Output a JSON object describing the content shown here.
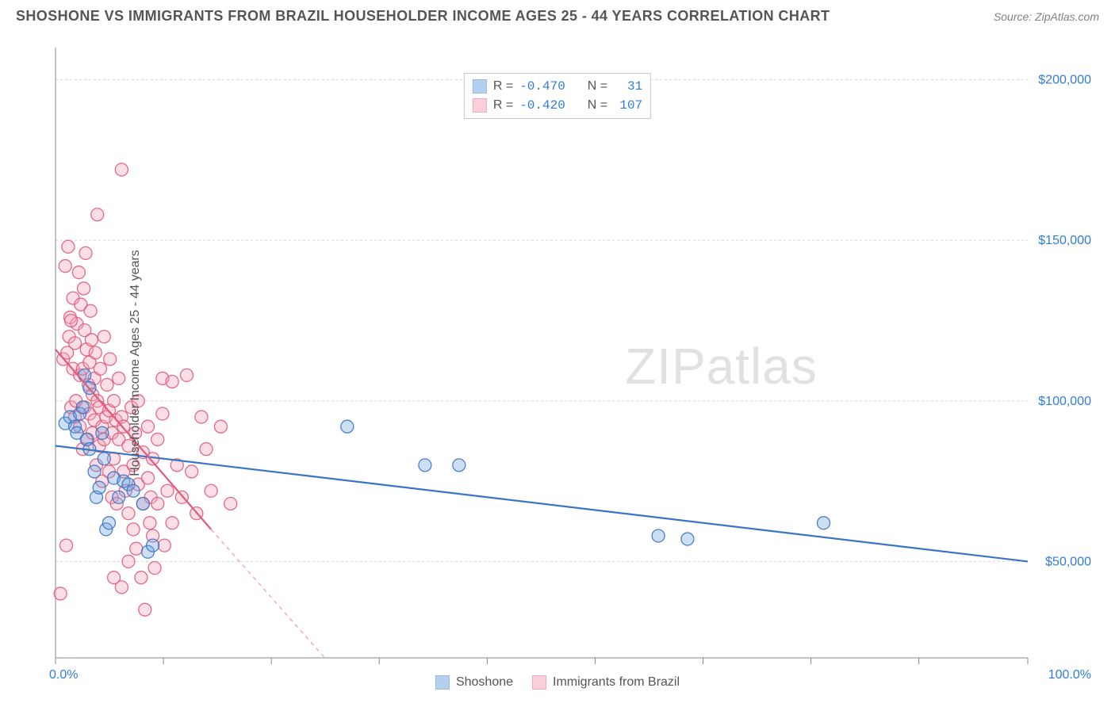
{
  "title": "SHOSHONE VS IMMIGRANTS FROM BRAZIL HOUSEHOLDER INCOME AGES 25 - 44 YEARS CORRELATION CHART",
  "source_prefix": "Source: ",
  "source_name": "ZipAtlas.com",
  "ylabel": "Householder Income Ages 25 - 44 years",
  "watermark_bold": "ZIP",
  "watermark_thin": "atlas",
  "chart": {
    "type": "scatter",
    "xlim": [
      0,
      100
    ],
    "ylim": [
      20000,
      210000
    ],
    "x_axis_origin_label": "0.0%",
    "x_axis_end_label": "100.0%",
    "y_ticks": [
      50000,
      100000,
      150000,
      200000
    ],
    "y_tick_labels": [
      "$50,000",
      "$100,000",
      "$150,000",
      "$200,000"
    ],
    "x_ticks": [
      0,
      11.1,
      22.2,
      33.3,
      44.4,
      55.5,
      66.6,
      77.7,
      88.8,
      100
    ],
    "grid_color": "#d7d7d7",
    "axis_color": "#888888",
    "background_color": "#ffffff",
    "marker_radius": 8,
    "marker_fill_opacity": 0.35,
    "marker_stroke_opacity": 0.9,
    "line_width": 2.2
  },
  "series": [
    {
      "name": "Shoshone",
      "color": "#6ea3e0",
      "stroke": "#3a74c4",
      "r_label": "R = ",
      "r_value": "-0.470",
      "n_label": "N = ",
      "n_value": "31",
      "regression": {
        "x1": 0,
        "y1": 86000,
        "x2": 100,
        "y2": 50000
      },
      "points": [
        [
          1.0,
          93000
        ],
        [
          1.5,
          95000
        ],
        [
          2.0,
          92000
        ],
        [
          2.2,
          90000
        ],
        [
          2.5,
          96000
        ],
        [
          3.0,
          108000
        ],
        [
          3.2,
          88000
        ],
        [
          3.5,
          85000
        ],
        [
          3.5,
          104000
        ],
        [
          4.0,
          78000
        ],
        [
          4.2,
          70000
        ],
        [
          4.5,
          73000
        ],
        [
          5.0,
          82000
        ],
        [
          5.2,
          60000
        ],
        [
          5.5,
          62000
        ],
        [
          6.0,
          76000
        ],
        [
          6.5,
          70000
        ],
        [
          7.0,
          75000
        ],
        [
          7.5,
          74000
        ],
        [
          8.0,
          72000
        ],
        [
          9.0,
          68000
        ],
        [
          9.5,
          53000
        ],
        [
          10.0,
          55000
        ],
        [
          30.0,
          92000
        ],
        [
          38.0,
          80000
        ],
        [
          41.5,
          80000
        ],
        [
          62.0,
          58000
        ],
        [
          65.0,
          57000
        ],
        [
          79.0,
          62000
        ],
        [
          2.8,
          98000
        ],
        [
          4.8,
          90000
        ]
      ]
    },
    {
      "name": "Immigrants from Brazil",
      "color": "#f5a3b7",
      "stroke": "#e05a7a",
      "r_label": "R = ",
      "r_value": "-0.420",
      "n_label": "N = ",
      "n_value": "107",
      "regression": {
        "x1": 0,
        "y1": 116000,
        "x2": 16,
        "y2": 60000
      },
      "regression_dash": {
        "x1": 16,
        "y1": 60000,
        "x2": 35,
        "y2": -5000
      },
      "points": [
        [
          0.8,
          113000
        ],
        [
          1.0,
          142000
        ],
        [
          1.2,
          115000
        ],
        [
          1.3,
          148000
        ],
        [
          1.4,
          120000
        ],
        [
          1.5,
          126000
        ],
        [
          1.6,
          98000
        ],
        [
          1.8,
          110000
        ],
        [
          1.8,
          132000
        ],
        [
          2.0,
          118000
        ],
        [
          2.0,
          95000
        ],
        [
          2.1,
          100000
        ],
        [
          2.2,
          124000
        ],
        [
          2.4,
          140000
        ],
        [
          2.5,
          108000
        ],
        [
          2.5,
          92000
        ],
        [
          2.6,
          130000
        ],
        [
          2.8,
          110000
        ],
        [
          2.8,
          85000
        ],
        [
          3.0,
          122000
        ],
        [
          3.0,
          98000
        ],
        [
          3.1,
          146000
        ],
        [
          3.2,
          116000
        ],
        [
          3.3,
          88000
        ],
        [
          3.4,
          105000
        ],
        [
          3.5,
          112000
        ],
        [
          3.5,
          96000
        ],
        [
          3.6,
          128000
        ],
        [
          3.8,
          102000
        ],
        [
          3.8,
          90000
        ],
        [
          4.0,
          94000
        ],
        [
          4.0,
          107000
        ],
        [
          4.1,
          115000
        ],
        [
          4.2,
          80000
        ],
        [
          4.3,
          100000
        ],
        [
          4.5,
          86000
        ],
        [
          4.5,
          98000
        ],
        [
          4.6,
          110000
        ],
        [
          4.8,
          92000
        ],
        [
          4.8,
          75000
        ],
        [
          5.0,
          120000
        ],
        [
          5.0,
          88000
        ],
        [
          5.2,
          95000
        ],
        [
          5.3,
          105000
        ],
        [
          5.5,
          78000
        ],
        [
          5.5,
          97000
        ],
        [
          5.6,
          113000
        ],
        [
          5.8,
          70000
        ],
        [
          5.8,
          90000
        ],
        [
          6.0,
          100000
        ],
        [
          6.0,
          82000
        ],
        [
          6.2,
          94000
        ],
        [
          6.3,
          68000
        ],
        [
          6.5,
          88000
        ],
        [
          6.5,
          107000
        ],
        [
          6.8,
          95000
        ],
        [
          6.8,
          42000
        ],
        [
          7.0,
          78000
        ],
        [
          7.0,
          92000
        ],
        [
          7.2,
          72000
        ],
        [
          7.5,
          86000
        ],
        [
          7.5,
          65000
        ],
        [
          7.8,
          98000
        ],
        [
          8.0,
          80000
        ],
        [
          8.0,
          60000
        ],
        [
          8.2,
          90000
        ],
        [
          8.5,
          74000
        ],
        [
          8.5,
          100000
        ],
        [
          8.8,
          45000
        ],
        [
          9.0,
          84000
        ],
        [
          9.0,
          68000
        ],
        [
          9.2,
          35000
        ],
        [
          9.5,
          76000
        ],
        [
          9.5,
          92000
        ],
        [
          9.8,
          70000
        ],
        [
          10.0,
          82000
        ],
        [
          10.0,
          58000
        ],
        [
          10.2,
          48000
        ],
        [
          10.5,
          68000
        ],
        [
          10.5,
          88000
        ],
        [
          11.0,
          96000
        ],
        [
          11.0,
          107000
        ],
        [
          11.5,
          72000
        ],
        [
          12.0,
          106000
        ],
        [
          12.0,
          62000
        ],
        [
          12.5,
          80000
        ],
        [
          13.0,
          70000
        ],
        [
          13.5,
          108000
        ],
        [
          14.0,
          78000
        ],
        [
          14.5,
          65000
        ],
        [
          15.0,
          95000
        ],
        [
          15.5,
          85000
        ],
        [
          16.0,
          72000
        ],
        [
          17.0,
          92000
        ],
        [
          18.0,
          68000
        ],
        [
          6.8,
          172000
        ],
        [
          4.3,
          158000
        ],
        [
          1.6,
          125000
        ],
        [
          2.9,
          135000
        ],
        [
          3.7,
          119000
        ],
        [
          0.5,
          40000
        ],
        [
          1.1,
          55000
        ],
        [
          8.3,
          54000
        ],
        [
          11.2,
          55000
        ],
        [
          7.5,
          50000
        ],
        [
          6.0,
          45000
        ],
        [
          9.7,
          62000
        ]
      ]
    }
  ]
}
